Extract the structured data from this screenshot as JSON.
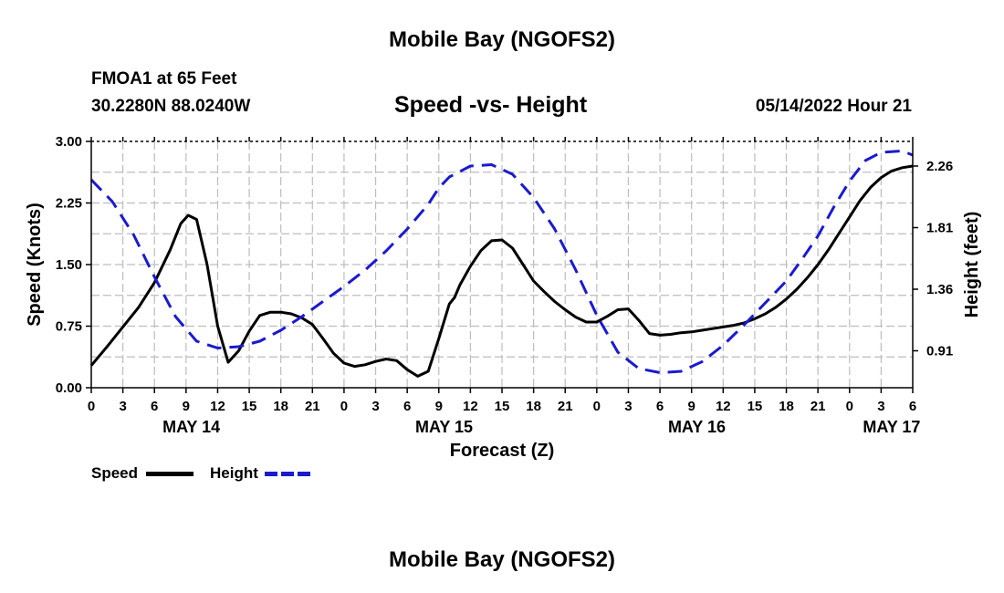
{
  "header": {
    "title_top": "Mobile Bay (NGOFS2)",
    "title_bottom": "Mobile Bay (NGOFS2)",
    "station": "FMOA1 at 65 Feet",
    "coords": "30.2280N  88.0240W",
    "subtitle": "Speed -vs- Height",
    "datetime": "05/14/2022 Hour 21"
  },
  "legend": {
    "speed": "Speed",
    "height": "Height"
  },
  "colors": {
    "speed": "#000000",
    "height": "#1a1acf",
    "grid": "#bdbdbd"
  },
  "chart_data": {
    "type": "line",
    "title": "Speed -vs- Height",
    "xlabel": "Forecast (Z)",
    "ylabel": "Speed (Knots)",
    "y2label": "Height (feet)",
    "xlim": [
      0,
      78
    ],
    "ylim": [
      0,
      3.0
    ],
    "y2lim": [
      0.64,
      2.44
    ],
    "x_ticks": [
      0,
      3,
      6,
      9,
      12,
      15,
      18,
      21,
      24,
      27,
      30,
      33,
      36,
      39,
      42,
      45,
      48,
      51,
      54,
      57,
      60,
      63,
      66,
      69,
      72,
      75,
      78
    ],
    "x_tick_labels": [
      "0",
      "3",
      "6",
      "9",
      "12",
      "15",
      "18",
      "21",
      "0",
      "3",
      "6",
      "9",
      "12",
      "15",
      "18",
      "21",
      "0",
      "3",
      "6",
      "9",
      "12",
      "15",
      "18",
      "21",
      "0",
      "3",
      "6"
    ],
    "date_labels": [
      {
        "x": 9.5,
        "label": "MAY 14"
      },
      {
        "x": 33.5,
        "label": "MAY 15"
      },
      {
        "x": 57.5,
        "label": "MAY 16"
      },
      {
        "x": 76,
        "label": "MAY 17"
      }
    ],
    "y_ticks": [
      0,
      0.75,
      1.5,
      2.25,
      3.0
    ],
    "y_tick_labels": [
      "0.00",
      "0.75",
      "1.50",
      "2.25",
      "3.00"
    ],
    "y2_ticks": [
      0.91,
      1.36,
      1.81,
      2.26
    ],
    "y2_tick_labels": [
      "0.91",
      "1.36",
      "1.81",
      "2.26"
    ],
    "grid": true,
    "series": [
      {
        "name": "Speed",
        "axis": "left",
        "style": "solid",
        "x": [
          0,
          1.5,
          3,
          4.5,
          6,
          7.5,
          8.5,
          9.2,
          10,
          11,
          12,
          13,
          14,
          15,
          16,
          17,
          18,
          19,
          20,
          21,
          22,
          23,
          24,
          25,
          26,
          27,
          28,
          29,
          30,
          31,
          32,
          33,
          34,
          34.5,
          35,
          36,
          37,
          38,
          39,
          40,
          41,
          42,
          43,
          44,
          45,
          46,
          47,
          48,
          49,
          50,
          51,
          52,
          53,
          54,
          55,
          56,
          57,
          58,
          59,
          60,
          61,
          62,
          63,
          64,
          65,
          66,
          67,
          68,
          69,
          70,
          71,
          72,
          73,
          74,
          75,
          76,
          77,
          78
        ],
        "values": [
          0.27,
          0.5,
          0.74,
          0.98,
          1.28,
          1.68,
          2.0,
          2.1,
          2.05,
          1.5,
          0.75,
          0.31,
          0.45,
          0.69,
          0.88,
          0.92,
          0.92,
          0.9,
          0.85,
          0.77,
          0.6,
          0.42,
          0.3,
          0.26,
          0.28,
          0.32,
          0.35,
          0.33,
          0.22,
          0.14,
          0.2,
          0.6,
          1.02,
          1.1,
          1.25,
          1.48,
          1.67,
          1.79,
          1.8,
          1.7,
          1.5,
          1.3,
          1.17,
          1.05,
          0.95,
          0.86,
          0.8,
          0.8,
          0.87,
          0.95,
          0.96,
          0.82,
          0.66,
          0.64,
          0.65,
          0.67,
          0.68,
          0.7,
          0.72,
          0.74,
          0.76,
          0.79,
          0.84,
          0.9,
          0.98,
          1.08,
          1.2,
          1.34,
          1.5,
          1.68,
          1.88,
          2.08,
          2.28,
          2.44,
          2.56,
          2.64,
          2.68,
          2.7
        ]
      },
      {
        "name": "Height",
        "axis": "right",
        "style": "dashed",
        "x": [
          0,
          2,
          4,
          6,
          8,
          10,
          12,
          14,
          16,
          18,
          20,
          22,
          24,
          26,
          28,
          30,
          32,
          33,
          34,
          36,
          38,
          40,
          42,
          44,
          46,
          48,
          50,
          52,
          54,
          56,
          58,
          60,
          62,
          64,
          66,
          67.5,
          69,
          70.5,
          72,
          73.5,
          75,
          77,
          78
        ],
        "values": [
          2.16,
          2.0,
          1.76,
          1.45,
          1.16,
          0.98,
          0.93,
          0.94,
          0.98,
          1.06,
          1.16,
          1.27,
          1.38,
          1.5,
          1.64,
          1.8,
          1.98,
          2.1,
          2.18,
          2.26,
          2.27,
          2.2,
          2.03,
          1.8,
          1.5,
          1.17,
          0.9,
          0.78,
          0.75,
          0.76,
          0.83,
          0.95,
          1.1,
          1.26,
          1.42,
          1.58,
          1.75,
          1.96,
          2.15,
          2.3,
          2.36,
          2.37,
          2.34
        ]
      }
    ]
  }
}
